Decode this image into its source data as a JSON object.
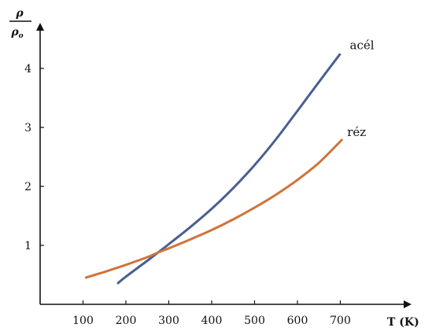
{
  "chart_data": {
    "type": "line",
    "xlabel": "T (K)",
    "ylabel": {
      "numerator": "ρ",
      "denominator": "ρ",
      "denominator_subscript": "o"
    },
    "xlim": [
      0,
      760
    ],
    "ylim": [
      0,
      4.6
    ],
    "xticks": [
      100,
      200,
      300,
      400,
      500,
      600,
      700
    ],
    "yticks": [
      1,
      2,
      3,
      4
    ],
    "grid": false,
    "colors": {
      "acél": "#4a5f91",
      "réz": "#d0733a"
    },
    "series": [
      {
        "name": "acél",
        "x": [
          180,
          200,
          250,
          275,
          300,
          350,
          400,
          450,
          500,
          550,
          600,
          650,
          700
        ],
        "y": [
          0.35,
          0.47,
          0.74,
          0.88,
          1.02,
          1.31,
          1.62,
          1.97,
          2.36,
          2.8,
          3.28,
          3.77,
          4.25
        ]
      },
      {
        "name": "réz",
        "x": [
          105,
          150,
          200,
          250,
          275,
          300,
          350,
          400,
          450,
          500,
          550,
          600,
          650,
          705
        ],
        "y": [
          0.45,
          0.55,
          0.67,
          0.8,
          0.88,
          0.95,
          1.1,
          1.26,
          1.44,
          1.64,
          1.86,
          2.11,
          2.4,
          2.8
        ]
      }
    ]
  }
}
